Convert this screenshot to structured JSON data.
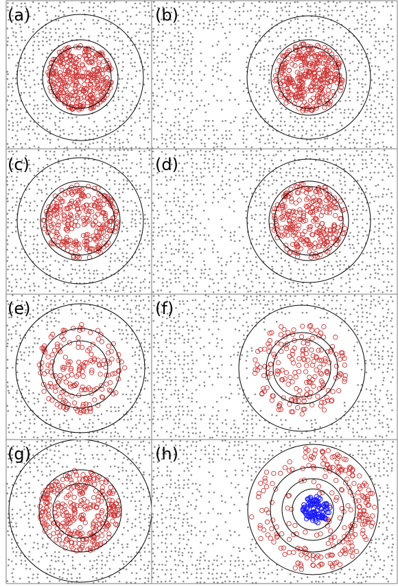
{
  "panels": [
    {
      "label": "(a)"
    },
    {
      "label": "(b)"
    },
    {
      "label": "(c)"
    },
    {
      "label": "(d)"
    },
    {
      "label": "(e)"
    },
    {
      "label": "(f)"
    },
    {
      "label": "(g)"
    },
    {
      "label": "(h)"
    }
  ],
  "colors": {
    "background_particles": "#8a8a8a",
    "red_particles": "#cc3333",
    "blue_particles": "#1a1aff",
    "rings": "#000000",
    "frame": "#7a7a7a"
  }
}
